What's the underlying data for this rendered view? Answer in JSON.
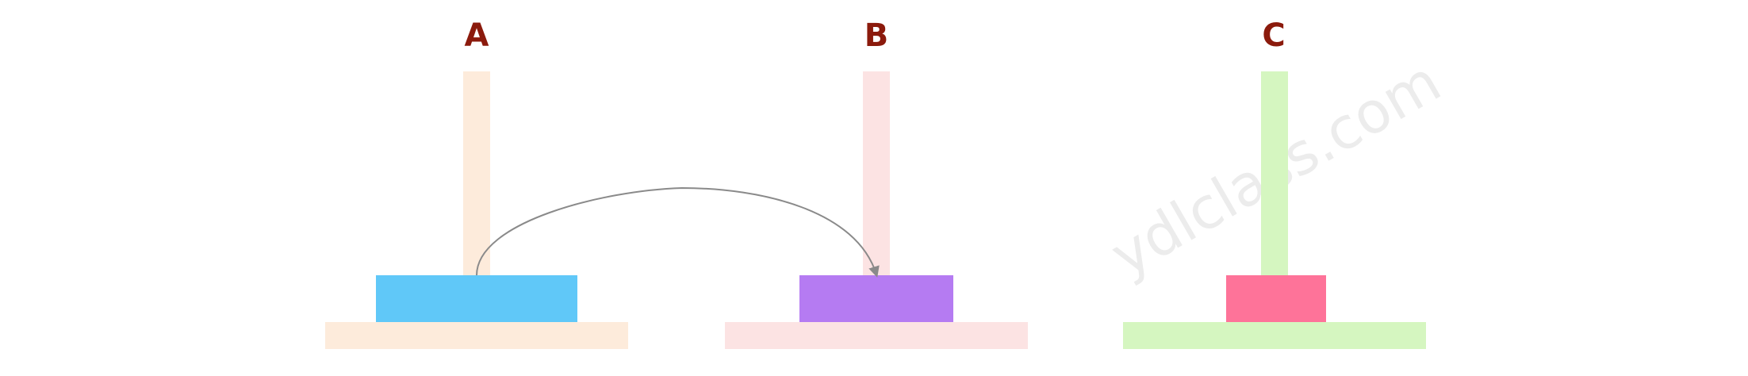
{
  "pegs": [
    {
      "label": "A",
      "rod_color": "#fdebdb",
      "base_color": "#fdebdb",
      "disks": [
        {
          "color": "#60c8f8"
        }
      ]
    },
    {
      "label": "B",
      "rod_color": "#fce3e3",
      "base_color": "#fce3e3",
      "disks": [
        {
          "color": "#b57bf2"
        }
      ]
    },
    {
      "label": "C",
      "rod_color": "#d5f6c0",
      "base_color": "#d5f6c0",
      "disks": [
        {
          "color": "#fe7399"
        }
      ]
    }
  ],
  "label_color": "#8b1a0c",
  "move": {
    "from": "A",
    "to": "B",
    "color": "#8a8a8a"
  },
  "watermark": {
    "text": "ydlclass.com",
    "color": "#ececec"
  }
}
